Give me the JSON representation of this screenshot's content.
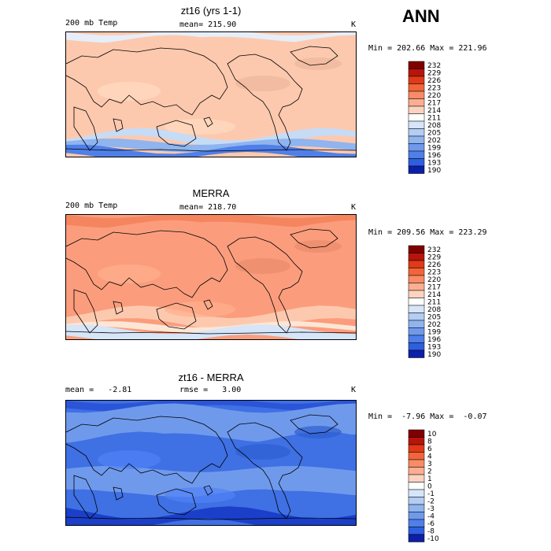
{
  "header": {
    "season": "ANN"
  },
  "panels": [
    {
      "title": "zt16 (yrs 1-1)",
      "left_label": "200 mb Temp",
      "center_label": "mean= 215.90",
      "units": "K",
      "minmax": "Min = 202.66 Max = 221.96",
      "colorbar_levels": [
        "232",
        "229",
        "226",
        "223",
        "220",
        "217",
        "214",
        "211",
        "208",
        "205",
        "202",
        "199",
        "196",
        "193",
        "190"
      ],
      "base_color": "#fdc9ae",
      "bands": [
        {
          "color": "#e6eefa",
          "from": 0.0,
          "to": 0.06
        },
        {
          "color": "#fdc9ae",
          "from": 0.06,
          "to": 0.82
        },
        {
          "color": "#c6dbf5",
          "from": 0.82,
          "to": 0.88
        },
        {
          "color": "#8fb4ef",
          "from": 0.88,
          "to": 0.94
        },
        {
          "color": "#4f7fe8",
          "from": 0.94,
          "to": 1.0
        }
      ]
    },
    {
      "title": "MERRA",
      "left_label": "200 mb Temp",
      "center_label": "mean= 218.70",
      "units": "K",
      "minmax": "Min = 209.56 Max = 223.29",
      "colorbar_levels": [
        "232",
        "229",
        "226",
        "223",
        "220",
        "217",
        "214",
        "211",
        "208",
        "205",
        "202",
        "199",
        "196",
        "193",
        "190"
      ],
      "base_color": "#fb9d7d",
      "bands": [
        {
          "color": "#f5855f",
          "from": 0.0,
          "to": 0.08
        },
        {
          "color": "#fb9d7d",
          "from": 0.08,
          "to": 0.78
        },
        {
          "color": "#fdc9ae",
          "from": 0.78,
          "to": 0.88
        },
        {
          "color": "#fde6d6",
          "from": 0.88,
          "to": 0.92
        },
        {
          "color": "#d6e5f8",
          "from": 0.92,
          "to": 1.0
        }
      ]
    },
    {
      "title": "zt16 - MERRA",
      "left_label": "mean =   -2.81",
      "center_label": "rmse =   3.00",
      "units": "K",
      "minmax": "Min =  -7.96 Max =  -0.07",
      "colorbar_levels": [
        "10",
        "8",
        "6",
        "4",
        "3",
        "2",
        "1",
        "0",
        "-1",
        "-2",
        "-3",
        "-4",
        "-6",
        "-8",
        "-10"
      ],
      "base_color": "#3f70e4",
      "bands": [
        {
          "color": "#2b55d8",
          "from": 0.0,
          "to": 0.06
        },
        {
          "color": "#6f9aec",
          "from": 0.06,
          "to": 0.3
        },
        {
          "color": "#3f70e4",
          "from": 0.3,
          "to": 0.55
        },
        {
          "color": "#6f9aec",
          "from": 0.55,
          "to": 0.75
        },
        {
          "color": "#3f70e4",
          "from": 0.75,
          "to": 0.9
        },
        {
          "color": "#1b3fc8",
          "from": 0.9,
          "to": 1.0
        }
      ]
    }
  ],
  "colorbar_colors": [
    "#800000",
    "#b7150b",
    "#e03a17",
    "#f2653b",
    "#f78c67",
    "#fbae91",
    "#fdd3bf",
    "#ffffff",
    "#d6e5f8",
    "#b3cdf3",
    "#8fb4ef",
    "#6f9aec",
    "#4f7fe8",
    "#2f5edf",
    "#0c1fa8"
  ],
  "chart_data": [
    {
      "type": "heatmap",
      "title": "zt16 (yrs 1-1)",
      "variable": "200 mb Temp",
      "mean": 215.9,
      "min": 202.66,
      "max": 221.96,
      "units": "K",
      "colorbar": [
        232,
        229,
        226,
        223,
        220,
        217,
        214,
        211,
        208,
        205,
        202,
        199,
        196,
        193,
        190
      ]
    },
    {
      "type": "heatmap",
      "title": "MERRA",
      "variable": "200 mb Temp",
      "mean": 218.7,
      "min": 209.56,
      "max": 223.29,
      "units": "K",
      "colorbar": [
        232,
        229,
        226,
        223,
        220,
        217,
        214,
        211,
        208,
        205,
        202,
        199,
        196,
        193,
        190
      ]
    },
    {
      "type": "heatmap",
      "title": "zt16 - MERRA",
      "mean": -2.81,
      "rmse": 3.0,
      "min": -7.96,
      "max": -0.07,
      "units": "K",
      "colorbar": [
        10,
        8,
        6,
        4,
        3,
        2,
        1,
        0,
        -1,
        -2,
        -3,
        -4,
        -6,
        -8,
        -10
      ]
    }
  ]
}
